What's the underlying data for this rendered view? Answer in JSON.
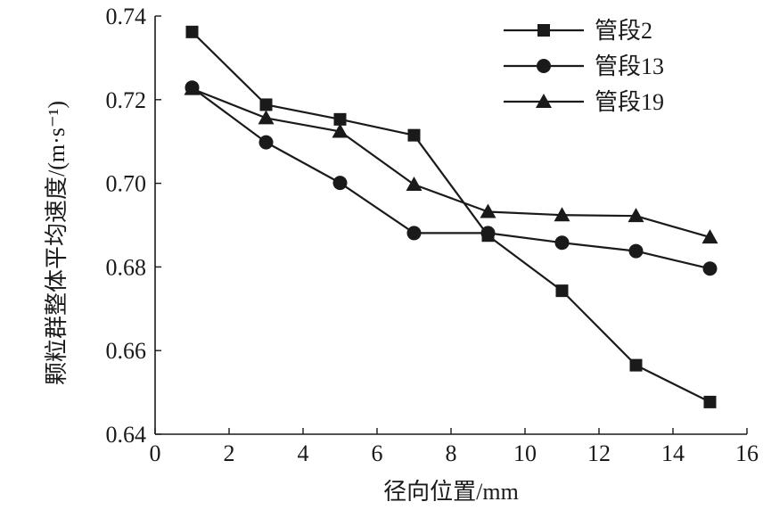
{
  "chart_data": {
    "type": "line",
    "xlabel": "径向位置/mm",
    "ylabel": "颗粒群整体平均速度/(m·s⁻¹)",
    "xlim": [
      0,
      16
    ],
    "ylim": [
      0.64,
      0.74
    ],
    "xticks": [
      0,
      2,
      4,
      6,
      8,
      10,
      12,
      14,
      16
    ],
    "yticks": [
      0.64,
      0.66,
      0.68,
      0.7,
      0.72,
      0.74
    ],
    "xtick_labels": [
      "0",
      "2",
      "4",
      "6",
      "8",
      "10",
      "12",
      "14",
      "16"
    ],
    "ytick_labels": [
      "0.64",
      "0.66",
      "0.68",
      "0.70",
      "0.72",
      "0.74"
    ],
    "legend_position": "top-right",
    "grid": false,
    "x": [
      1,
      3,
      5,
      7,
      9,
      11,
      13,
      15
    ],
    "series": [
      {
        "name": "管段2",
        "marker": "square",
        "values": [
          0.7362,
          0.7188,
          0.7153,
          0.7115,
          0.6875,
          0.6743,
          0.6565,
          0.6477
        ]
      },
      {
        "name": "管段13",
        "marker": "circle",
        "values": [
          0.7229,
          0.7098,
          0.7001,
          0.6881,
          0.6881,
          0.6858,
          0.6838,
          0.6796
        ]
      },
      {
        "name": "管段19",
        "marker": "triangle",
        "values": [
          0.7226,
          0.7156,
          0.7124,
          0.6997,
          0.6932,
          0.6924,
          0.6922,
          0.6871
        ]
      }
    ]
  }
}
